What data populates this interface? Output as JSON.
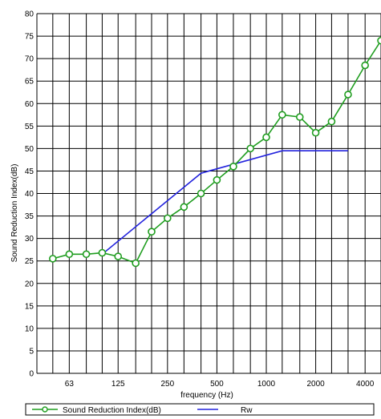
{
  "chart_data": {
    "type": "line",
    "xlabel": "frequency (Hz)",
    "ylabel": "Sound Reduction Index(dB)",
    "ylim": [
      0,
      80
    ],
    "y_ticks": [
      "0",
      "5",
      "10",
      "15",
      "20",
      "25",
      "30",
      "35",
      "40",
      "45",
      "50",
      "55",
      "60",
      "65",
      "70",
      "75",
      "80"
    ],
    "x_tick_labels": [
      "63",
      "125",
      "250",
      "500",
      "1000",
      "2000",
      "4000"
    ],
    "x_scale": "log",
    "x_range": [
      40,
      5000
    ],
    "grid": true,
    "legend_position": "bottom",
    "series": [
      {
        "name": "Sound Reduction Index(dB)",
        "color": "#1f9d1f",
        "marker": "circle",
        "x": [
          50,
          63,
          80,
          100,
          125,
          160,
          200,
          250,
          315,
          400,
          500,
          630,
          800,
          1000,
          1250,
          1600,
          2000,
          2500,
          3150,
          4000,
          5000
        ],
        "values": [
          25.5,
          26.5,
          26.5,
          26.8,
          26,
          24.5,
          31.5,
          34.5,
          37,
          40,
          43,
          46,
          50,
          52.5,
          57.5,
          57,
          53.5,
          56,
          62,
          68.5,
          74
        ]
      },
      {
        "name": "Rw",
        "color": "#2222dd",
        "marker": "none",
        "x": [
          100,
          400,
          1250,
          3150
        ],
        "values": [
          26.5,
          44.5,
          49.5,
          49.5
        ]
      }
    ]
  }
}
